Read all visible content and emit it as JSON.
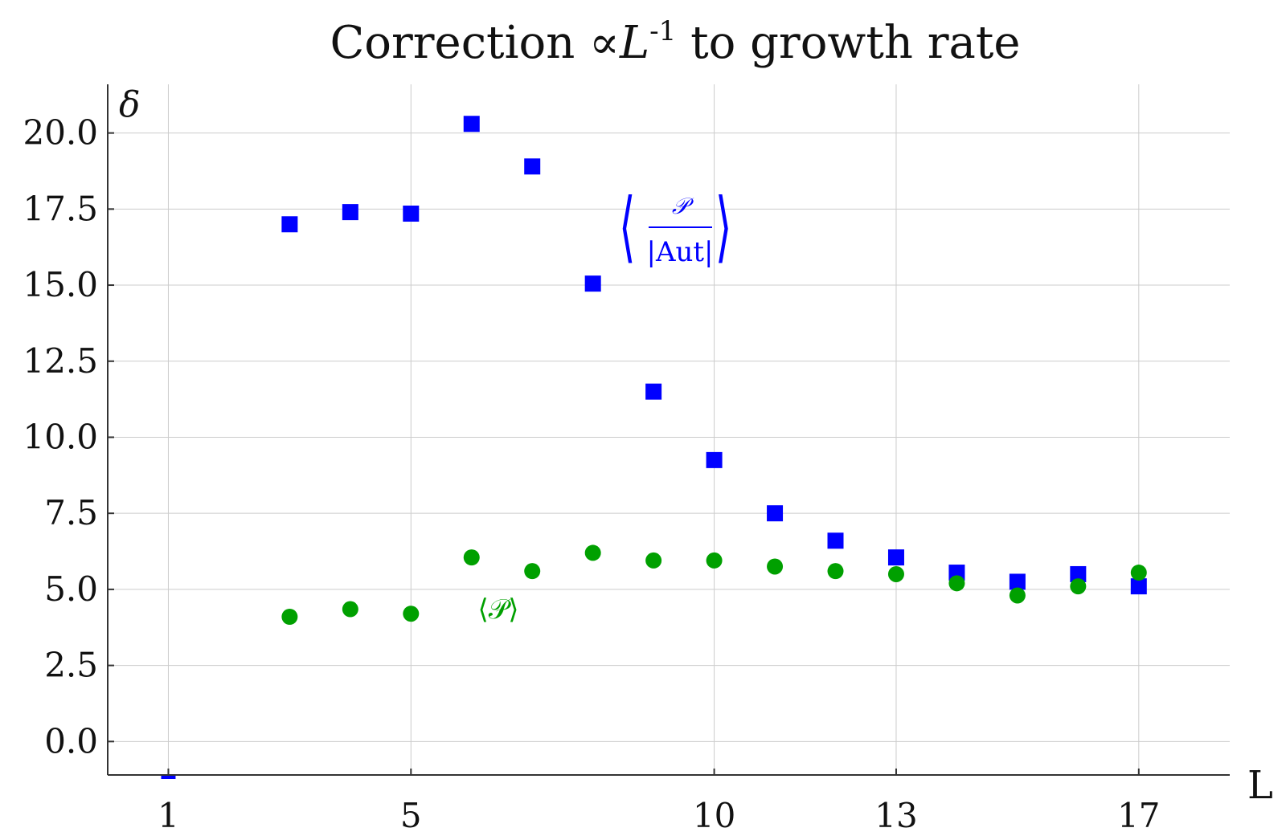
{
  "chart_data": {
    "type": "scatter",
    "title": "Correction ∝L⁻¹ to growth rate",
    "xlabel": "L",
    "ylabel": "δ",
    "xlim": [
      0,
      18.5
    ],
    "ylim": [
      -1.1,
      21.6
    ],
    "x_ticks": [
      1,
      5,
      10,
      13,
      17
    ],
    "x_tick_labels": [
      "1",
      "5",
      "10",
      "13",
      "17"
    ],
    "y_ticks": [
      0.0,
      2.5,
      5.0,
      7.5,
      10.0,
      12.5,
      15.0,
      17.5,
      20.0
    ],
    "y_tick_labels": [
      "0.0",
      "2.5",
      "5.0",
      "7.5",
      "10.0",
      "12.5",
      "15.0",
      "17.5",
      "20.0"
    ],
    "grid": true,
    "series": [
      {
        "name": "⟨P/|Aut|⟩",
        "marker": "square",
        "color": "#0000ff",
        "x": [
          1,
          3,
          4,
          5,
          6,
          7,
          8,
          9,
          10,
          11,
          12,
          13,
          14,
          15,
          16,
          17
        ],
        "y": [
          -1.2,
          17.0,
          17.4,
          17.35,
          20.3,
          18.9,
          15.05,
          11.5,
          9.25,
          7.5,
          6.6,
          6.05,
          5.55,
          5.25,
          5.5,
          5.1
        ]
      },
      {
        "name": "⟨P⟩",
        "marker": "circle",
        "color": "#00a000",
        "x": [
          3,
          4,
          5,
          6,
          7,
          8,
          9,
          10,
          11,
          12,
          13,
          14,
          15,
          16,
          17
        ],
        "y": [
          4.1,
          4.35,
          4.2,
          6.05,
          5.6,
          6.2,
          5.95,
          5.95,
          5.75,
          5.6,
          5.5,
          5.2,
          4.8,
          5.1,
          5.55
        ]
      }
    ],
    "annotations": {
      "blue_numerator": "𝒫",
      "blue_denominator": "|Aut|",
      "green_label": "⟨𝒫⟩"
    }
  },
  "title_parts": {
    "prefix": "Correction ∝",
    "var": "L",
    "exp": "-1",
    "suffix": " to growth rate"
  },
  "colors": {
    "axis": "#333333",
    "grid": "#cccccc",
    "blue": "#0000ff",
    "green": "#00a000"
  }
}
